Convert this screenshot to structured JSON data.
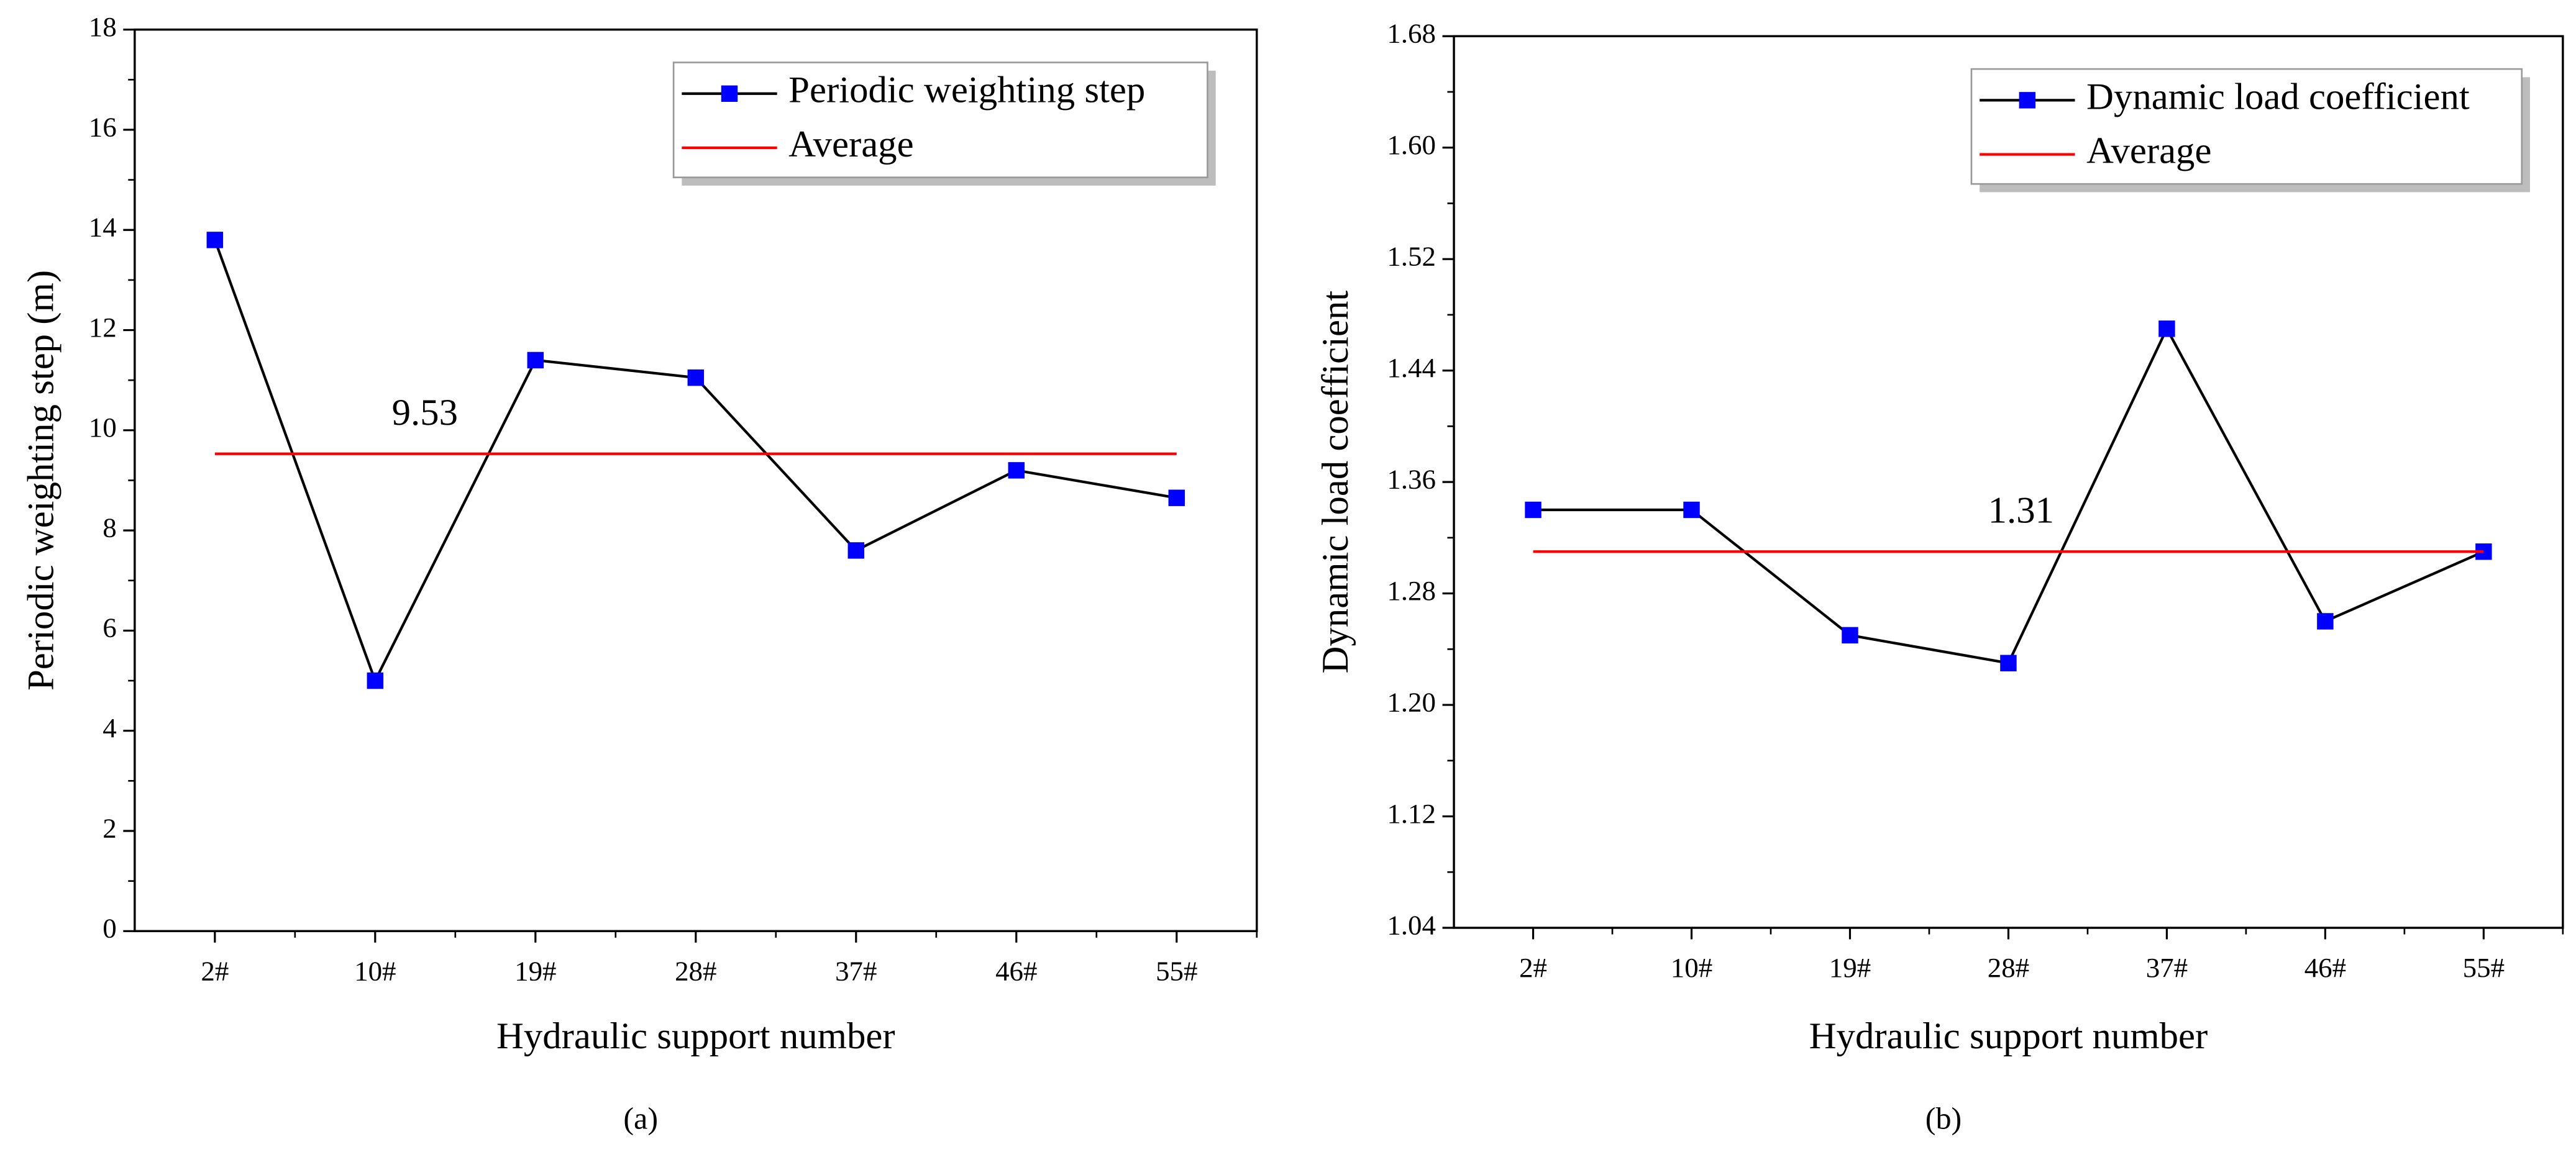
{
  "chart_data": [
    {
      "type": "line",
      "caption": "(a)",
      "x_label": "Hydraulic support number",
      "y_label": "Periodic weighting step (m)",
      "categories": [
        "2#",
        "10#",
        "19#",
        "28#",
        "37#",
        "46#",
        "55#"
      ],
      "series": [
        {
          "name": "Periodic weighting step",
          "color": "#0000ff",
          "values": [
            13.8,
            5.0,
            11.4,
            11.05,
            7.6,
            9.2,
            8.65
          ]
        },
        {
          "name": "Average",
          "color": "#ff0000",
          "values": [
            9.53,
            9.53,
            9.53,
            9.53,
            9.53,
            9.53,
            9.53
          ]
        }
      ],
      "annotations": [
        "9.53"
      ],
      "annotation_color": "#ff0000",
      "ylim": [
        0,
        18
      ],
      "yticks": [
        0,
        2,
        4,
        6,
        8,
        10,
        12,
        14,
        16,
        18
      ],
      "legend": "upper right"
    },
    {
      "type": "line",
      "caption": "(b)",
      "x_label": "Hydraulic support number",
      "y_label": "Dynamic load coefficient",
      "categories": [
        "2#",
        "10#",
        "19#",
        "28#",
        "37#",
        "46#",
        "55#"
      ],
      "series": [
        {
          "name": "Dynamic load coefficient",
          "color": "#0000ff",
          "values": [
            1.34,
            1.34,
            1.25,
            1.23,
            1.47,
            1.26,
            1.31
          ]
        },
        {
          "name": "Average",
          "color": "#ff0000",
          "values": [
            1.31,
            1.31,
            1.31,
            1.31,
            1.31,
            1.31,
            1.31
          ]
        }
      ],
      "annotations": [
        "1.31"
      ],
      "annotation_color": "#000000",
      "ylim": [
        1.04,
        1.68
      ],
      "yticks": [
        1.04,
        1.12,
        {
          "value": 1.2,
          "label": "1.20"
        },
        1.28,
        1.36,
        1.44,
        1.52,
        {
          "value": 1.6,
          "label": "1.60"
        },
        1.68
      ],
      "legend": "upper right"
    }
  ]
}
